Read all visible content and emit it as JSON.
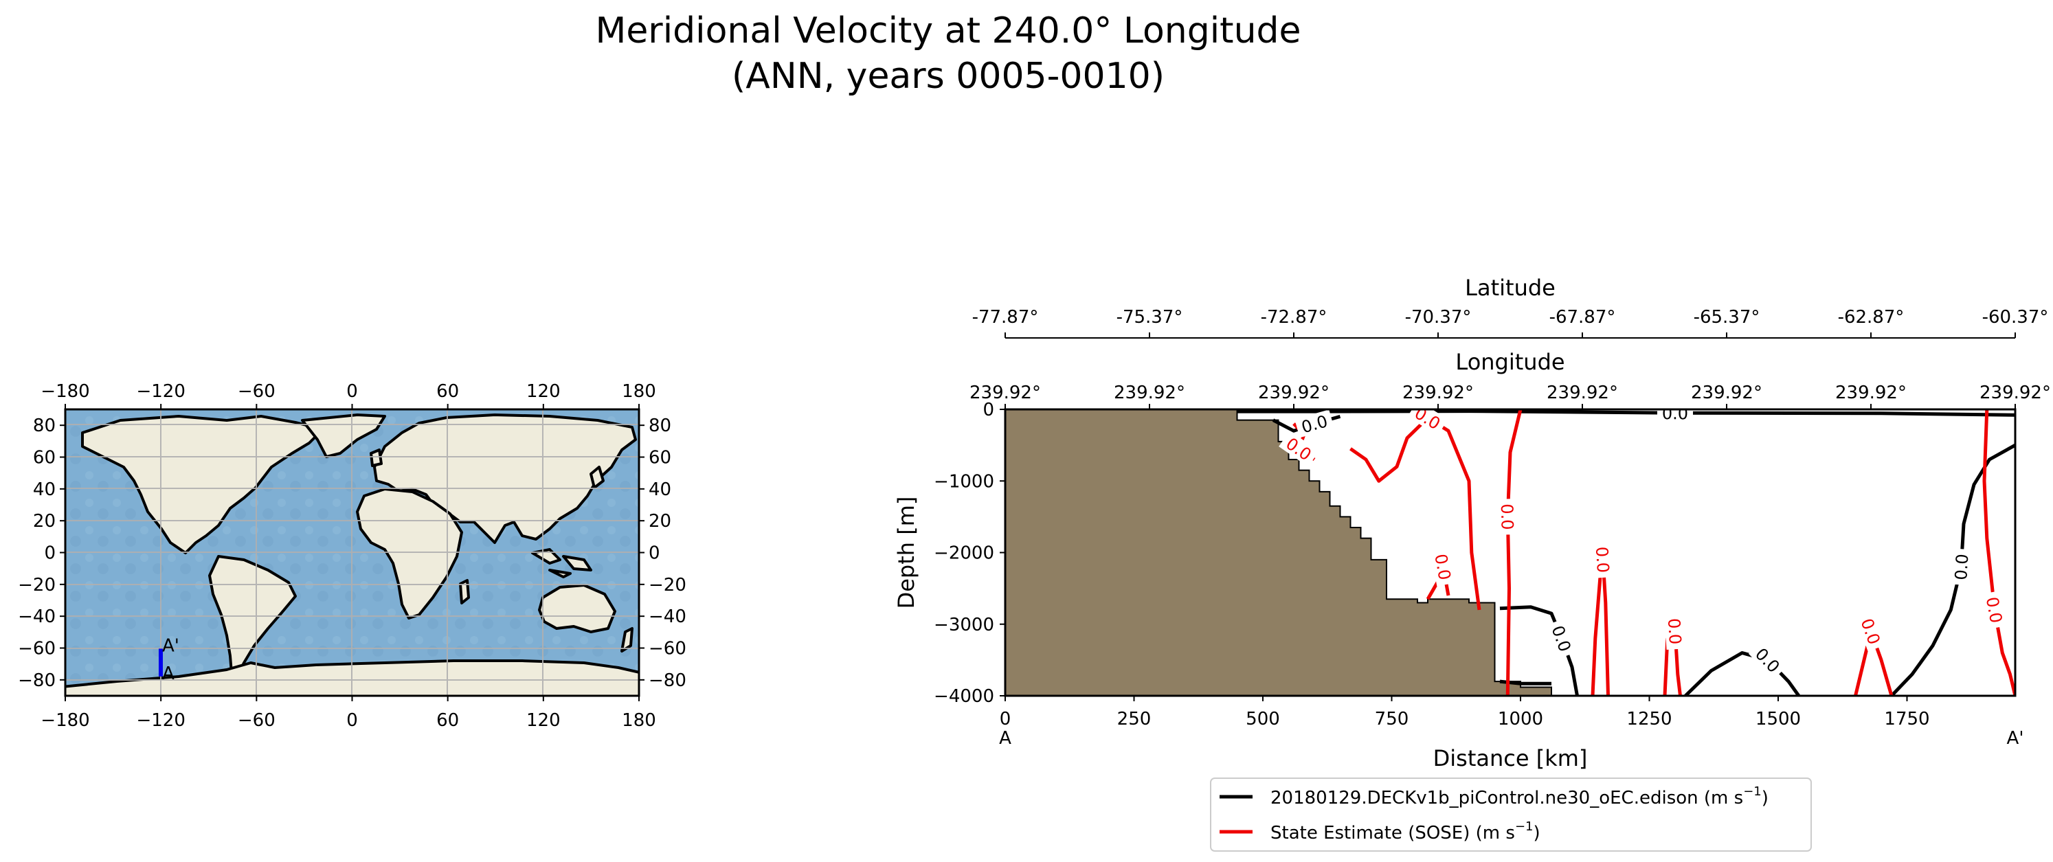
{
  "figure": {
    "title_line1": "Meridional Velocity at 240.0° Longitude",
    "title_line2": "(ANN, years 0005-0010)"
  },
  "colors": {
    "ocean": "#7fafd3",
    "land": "#efecdc",
    "section_fill": "#8f7f63",
    "model_line": "#000000",
    "obs_line": "#ee0000",
    "transect": "#0000ee",
    "grid": "#b0b0b0"
  },
  "chart_data": [
    {
      "type": "map",
      "name": "transect-location-map",
      "projection": "PlateCarree",
      "xlim": [
        -180,
        180
      ],
      "ylim": [
        -90,
        90
      ],
      "x_ticks": [
        "−180",
        "−120",
        "−60",
        "0",
        "60",
        "120",
        "180"
      ],
      "y_ticks_left": [
        "80",
        "60",
        "40",
        "20",
        "0",
        "−20",
        "−40",
        "−60",
        "−80"
      ],
      "y_ticks_right": [
        "80",
        "60",
        "40",
        "20",
        "0",
        "−20",
        "−40",
        "−60",
        "−80"
      ],
      "grid": true,
      "transect": {
        "lon": -120.08,
        "lat_start": -77.87,
        "lat_end": -60.37,
        "label_start": "A",
        "label_end": "A'"
      }
    },
    {
      "type": "contour",
      "name": "meridional-velocity-section",
      "xlabel": "Distance [km]",
      "ylabel": "Depth [m]",
      "xlim": [
        0,
        1960
      ],
      "ylim": [
        -4000,
        0
      ],
      "x_ticks": [
        "0",
        "250",
        "500",
        "750",
        "1000",
        "1250",
        "1500",
        "1750"
      ],
      "y_ticks": [
        "0",
        "−1000",
        "−2000",
        "−3000",
        "−4000"
      ],
      "start_label": "A",
      "end_label": "A'",
      "top_axis_1": {
        "label": "Longitude",
        "ticks": [
          "239.92°",
          "239.92°",
          "239.92°",
          "239.92°",
          "239.92°",
          "239.92°",
          "239.92°",
          "239.92°"
        ]
      },
      "top_axis_2": {
        "label": "Latitude",
        "ticks": [
          "-77.87°",
          "-75.37°",
          "-72.87°",
          "-70.37°",
          "-67.87°",
          "-65.37°",
          "-62.87°",
          "-60.37°"
        ]
      },
      "contour_level": "0.0",
      "bathymetry": [
        [
          0,
          0
        ],
        [
          450,
          0
        ],
        [
          450,
          -150
        ],
        [
          530,
          -150
        ],
        [
          530,
          -450
        ],
        [
          550,
          -450
        ],
        [
          550,
          -700
        ],
        [
          570,
          -700
        ],
        [
          570,
          -850
        ],
        [
          590,
          -850
        ],
        [
          590,
          -1000
        ],
        [
          610,
          -1000
        ],
        [
          610,
          -1150
        ],
        [
          630,
          -1150
        ],
        [
          630,
          -1350
        ],
        [
          650,
          -1350
        ],
        [
          650,
          -1500
        ],
        [
          670,
          -1500
        ],
        [
          670,
          -1650
        ],
        [
          690,
          -1650
        ],
        [
          690,
          -1800
        ],
        [
          710,
          -1800
        ],
        [
          710,
          -2100
        ],
        [
          740,
          -2100
        ],
        [
          740,
          -2650
        ],
        [
          800,
          -2650
        ],
        [
          800,
          -2700
        ],
        [
          820,
          -2700
        ],
        [
          820,
          -2650
        ],
        [
          900,
          -2650
        ],
        [
          900,
          -2700
        ],
        [
          950,
          -2700
        ],
        [
          950,
          -3800
        ],
        [
          1000,
          -3800
        ],
        [
          1000,
          -3880
        ],
        [
          1060,
          -3880
        ],
        [
          1060,
          -4000
        ],
        [
          0,
          -4000
        ]
      ],
      "series": [
        {
          "name": "20180129.DECKv1b_piControl.ne30_oEC.edison",
          "color": "#000000",
          "contours": [
            [
              [
                450,
                -30
              ],
              [
                600,
                -30
              ],
              [
                900,
                -25
              ],
              [
                1300,
                -50
              ],
              [
                1700,
                -55
              ],
              [
                1960,
                -80
              ]
            ],
            [
              [
                1720,
                -4000
              ],
              [
                1760,
                -3700
              ],
              [
                1800,
                -3300
              ],
              [
                1835,
                -2800
              ],
              [
                1855,
                -2200
              ],
              [
                1860,
                -1600
              ],
              [
                1880,
                -1050
              ],
              [
                1910,
                -700
              ],
              [
                1960,
                -500
              ]
            ],
            [
              [
                960,
                -2780
              ],
              [
                1020,
                -2760
              ],
              [
                1060,
                -2850
              ],
              [
                1080,
                -3200
              ],
              [
                1100,
                -3600
              ],
              [
                1110,
                -4000
              ]
            ],
            [
              [
                1320,
                -4000
              ],
              [
                1370,
                -3650
              ],
              [
                1430,
                -3400
              ],
              [
                1480,
                -3500
              ],
              [
                1520,
                -3800
              ],
              [
                1540,
                -4000
              ]
            ],
            [
              [
                520,
                -150
              ],
              [
                560,
                -300
              ],
              [
                600,
                -200
              ],
              [
                650,
                -100
              ]
            ],
            [
              [
                960,
                -3800
              ],
              [
                1000,
                -3830
              ],
              [
                1060,
                -3830
              ]
            ]
          ]
        },
        {
          "name": "State Estimate (SOSE)",
          "color": "#ee0000",
          "contours": [
            [
              [
                1000,
                0
              ],
              [
                980,
                -600
              ],
              [
                975,
                -1500
              ],
              [
                978,
                -2500
              ],
              [
                975,
                -4000
              ]
            ],
            [
              [
                1905,
                0
              ],
              [
                1900,
                -1000
              ],
              [
                1905,
                -1800
              ],
              [
                1920,
                -2800
              ],
              [
                1935,
                -3400
              ],
              [
                1950,
                -3700
              ],
              [
                1960,
                -4000
              ]
            ],
            [
              [
                670,
                -550
              ],
              [
                700,
                -700
              ],
              [
                725,
                -1000
              ],
              [
                760,
                -800
              ],
              [
                780,
                -400
              ],
              [
                820,
                -120
              ],
              [
                860,
                -300
              ],
              [
                900,
                -1000
              ],
              [
                905,
                -2000
              ],
              [
                920,
                -2800
              ]
            ],
            [
              [
                820,
                -2650
              ],
              [
                840,
                -2400
              ],
              [
                850,
                -2200
              ],
              [
                860,
                -2600
              ]
            ],
            [
              [
                1140,
                -4000
              ],
              [
                1145,
                -3200
              ],
              [
                1155,
                -2300
              ],
              [
                1160,
                -2100
              ],
              [
                1165,
                -2700
              ],
              [
                1170,
                -4000
              ]
            ],
            [
              [
                1280,
                -4000
              ],
              [
                1285,
                -3200
              ],
              [
                1300,
                -3100
              ],
              [
                1305,
                -3700
              ],
              [
                1310,
                -4000
              ]
            ],
            [
              [
                1650,
                -4000
              ],
              [
                1670,
                -3400
              ],
              [
                1680,
                -3100
              ],
              [
                1700,
                -3500
              ],
              [
                1720,
                -4000
              ]
            ],
            [
              [
                560,
                -200
              ],
              [
                580,
                -350
              ],
              [
                570,
                -550
              ],
              [
                600,
                -700
              ]
            ]
          ]
        }
      ],
      "legend": {
        "position": "below",
        "entries": [
          {
            "label": "20180129.DECKv1b_piControl.ne30_oEC.edison (m s",
            "sup": "−1",
            "close": ")",
            "color": "#000000"
          },
          {
            "label": "State Estimate (SOSE) (m s",
            "sup": "−1",
            "close": ")",
            "color": "#ee0000"
          }
        ]
      }
    }
  ]
}
